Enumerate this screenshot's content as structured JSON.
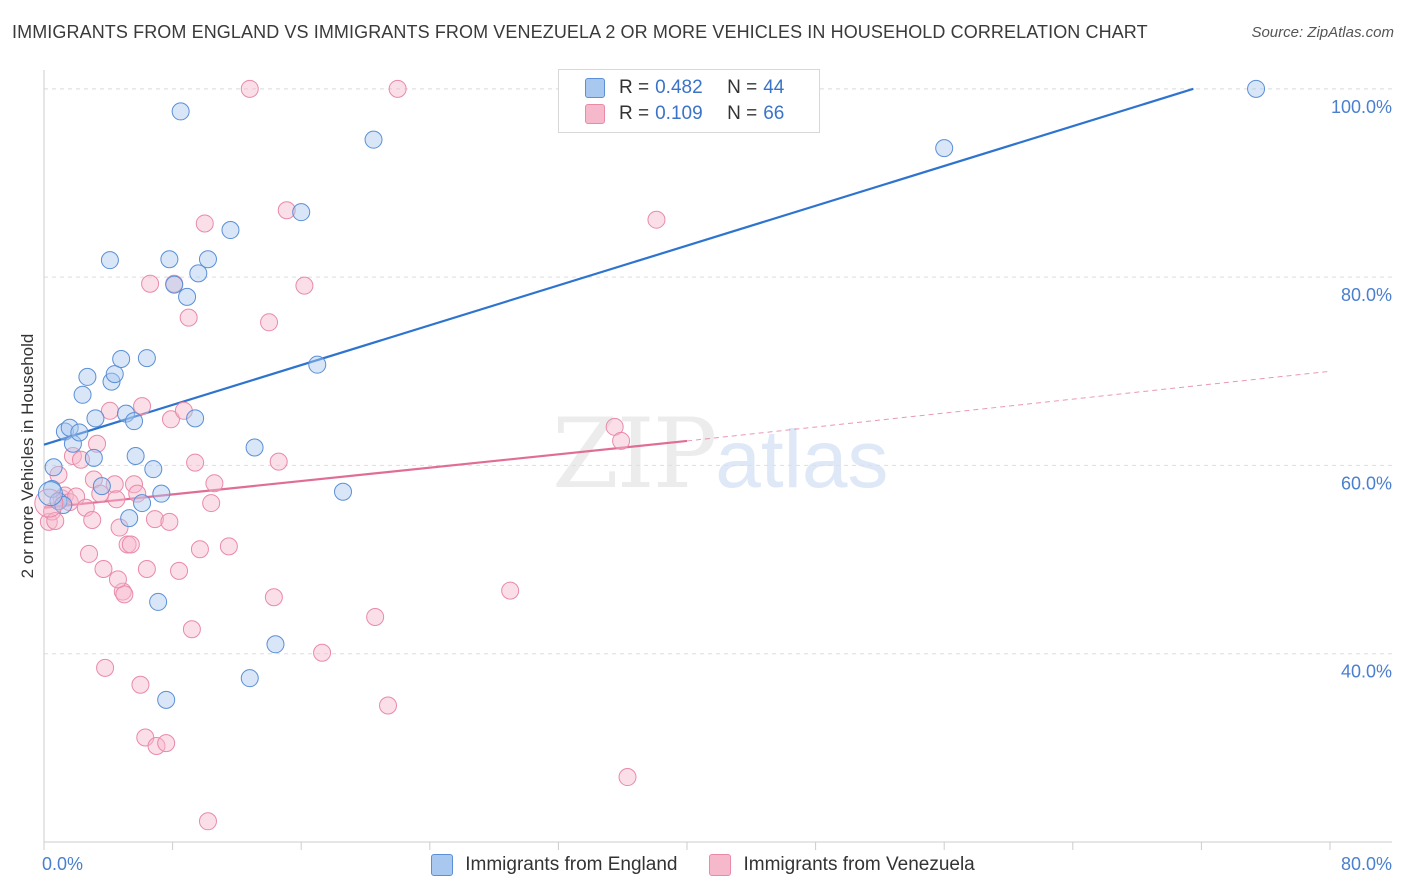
{
  "title": "IMMIGRANTS FROM ENGLAND VS IMMIGRANTS FROM VENEZUELA 2 OR MORE VEHICLES IN HOUSEHOLD CORRELATION CHART",
  "source": "Source: ZipAtlas.com",
  "watermark": {
    "zip": "ZIP",
    "atlas": "atlas"
  },
  "legend": {
    "england": {
      "r_label": "R = ",
      "r_value": "0.482",
      "n_label": "N = ",
      "n_value": "44"
    },
    "venezuela": {
      "r_label": "R = ",
      "r_value": "0.109",
      "n_label": "N = ",
      "n_value": "66"
    }
  },
  "colors": {
    "england_fill": "#a9c8f0",
    "england_stroke": "#5b8fd6",
    "england_line": "#2e74cf",
    "venezuela_fill": "#f6b8cb",
    "venezuela_stroke": "#e98aa8",
    "venezuela_line": "#e06d96",
    "grid": "#dedede",
    "tick_label": "#4a7fd0"
  },
  "chart_data": {
    "type": "scatter",
    "title": "IMMIGRANTS FROM ENGLAND VS IMMIGRANTS FROM VENEZUELA 2 OR MORE VEHICLES IN HOUSEHOLD CORRELATION CHART",
    "xlabel": "",
    "ylabel": "2 or more Vehicles in Household",
    "xlim": [
      0,
      80
    ],
    "ylim": [
      20,
      102
    ],
    "x_tick_labels": [
      {
        "value": 0,
        "label": "0.0%"
      },
      {
        "value": 80,
        "label": "80.0%"
      }
    ],
    "y_tick_labels": [
      {
        "value": 100,
        "label": "100.0%"
      },
      {
        "value": 80,
        "label": "80.0%"
      },
      {
        "value": 60,
        "label": "60.0%"
      },
      {
        "value": 40,
        "label": "40.0%"
      }
    ],
    "series": [
      {
        "name": "Immigrants from England",
        "r": 0.482,
        "n": 44,
        "trend": {
          "x0": 0,
          "y0": 62.2,
          "x1": 71.5,
          "y1": 100,
          "dashed_to": null
        },
        "points": [
          [
            0.5,
            57.5
          ],
          [
            0.6,
            59.8
          ],
          [
            0.9,
            56.2
          ],
          [
            1.2,
            55.8
          ],
          [
            1.3,
            63.6
          ],
          [
            1.6,
            64.0
          ],
          [
            1.8,
            62.3
          ],
          [
            2.2,
            63.5
          ],
          [
            2.4,
            67.5
          ],
          [
            2.7,
            69.4
          ],
          [
            3.1,
            60.8
          ],
          [
            3.2,
            65.0
          ],
          [
            3.6,
            57.8
          ],
          [
            4.1,
            81.8
          ],
          [
            4.2,
            68.9
          ],
          [
            4.4,
            69.7
          ],
          [
            4.8,
            71.3
          ],
          [
            5.1,
            65.5
          ],
          [
            5.6,
            64.7
          ],
          [
            5.7,
            61.0
          ],
          [
            6.1,
            56.0
          ],
          [
            6.4,
            71.4
          ],
          [
            6.8,
            59.6
          ],
          [
            7.1,
            45.5
          ],
          [
            7.3,
            57.0
          ],
          [
            7.6,
            35.1
          ],
          [
            7.8,
            81.9
          ],
          [
            8.1,
            79.2
          ],
          [
            8.5,
            97.6
          ],
          [
            8.9,
            77.9
          ],
          [
            9.4,
            65.0
          ],
          [
            9.6,
            80.4
          ],
          [
            10.2,
            81.9
          ],
          [
            11.6,
            85.0
          ],
          [
            12.8,
            37.4
          ],
          [
            13.1,
            61.9
          ],
          [
            14.4,
            41.0
          ],
          [
            16.0,
            86.9
          ],
          [
            17.0,
            70.7
          ],
          [
            18.6,
            57.2
          ],
          [
            20.5,
            94.6
          ],
          [
            56.0,
            93.7
          ],
          [
            75.4,
            100.0
          ],
          [
            5.3,
            54.4
          ]
        ]
      },
      {
        "name": "Immigrants from Venezuela",
        "r": 0.109,
        "n": 66,
        "trend": {
          "x0": 0,
          "y0": 55.5,
          "x1": 40,
          "y1": 62.6,
          "dashed_to": {
            "x": 80,
            "y": 70.0
          }
        },
        "points": [
          [
            0.3,
            54.0
          ],
          [
            0.5,
            55.1
          ],
          [
            0.7,
            54.1
          ],
          [
            0.9,
            59.0
          ],
          [
            1.1,
            56.5
          ],
          [
            1.3,
            56.8
          ],
          [
            1.6,
            56.1
          ],
          [
            1.8,
            61.0
          ],
          [
            2.0,
            56.7
          ],
          [
            2.3,
            60.6
          ],
          [
            2.6,
            55.5
          ],
          [
            2.8,
            50.6
          ],
          [
            3.1,
            58.5
          ],
          [
            3.3,
            62.3
          ],
          [
            3.5,
            57.0
          ],
          [
            3.7,
            49.0
          ],
          [
            3.8,
            38.5
          ],
          [
            4.1,
            65.8
          ],
          [
            4.4,
            58.0
          ],
          [
            4.5,
            56.4
          ],
          [
            4.7,
            53.4
          ],
          [
            4.9,
            46.6
          ],
          [
            5.0,
            46.3
          ],
          [
            5.2,
            51.6
          ],
          [
            5.4,
            51.6
          ],
          [
            5.6,
            58.0
          ],
          [
            5.8,
            57.0
          ],
          [
            6.0,
            36.7
          ],
          [
            6.1,
            66.3
          ],
          [
            6.3,
            31.1
          ],
          [
            6.4,
            49.0
          ],
          [
            6.6,
            79.3
          ],
          [
            6.9,
            54.3
          ],
          [
            7.0,
            30.2
          ],
          [
            7.6,
            30.5
          ],
          [
            7.9,
            64.9
          ],
          [
            8.1,
            79.3
          ],
          [
            8.4,
            48.8
          ],
          [
            8.7,
            65.8
          ],
          [
            9.0,
            75.7
          ],
          [
            9.2,
            42.6
          ],
          [
            9.4,
            60.3
          ],
          [
            9.7,
            51.1
          ],
          [
            10.0,
            85.7
          ],
          [
            10.2,
            22.2
          ],
          [
            10.4,
            56.0
          ],
          [
            10.6,
            58.1
          ],
          [
            11.5,
            51.4
          ],
          [
            14.0,
            75.2
          ],
          [
            14.3,
            46.0
          ],
          [
            14.6,
            60.4
          ],
          [
            15.1,
            87.1
          ],
          [
            16.2,
            79.1
          ],
          [
            17.3,
            40.1
          ],
          [
            20.6,
            43.9
          ],
          [
            21.4,
            34.5
          ],
          [
            12.8,
            100.0
          ],
          [
            22.0,
            100.0
          ],
          [
            29.0,
            46.7
          ],
          [
            35.5,
            64.1
          ],
          [
            35.9,
            62.6
          ],
          [
            36.3,
            26.9
          ],
          [
            38.1,
            86.1
          ],
          [
            3.0,
            54.2
          ],
          [
            4.6,
            47.9
          ],
          [
            7.8,
            54.0
          ]
        ]
      }
    ]
  },
  "bottom_legend": {
    "england_label": "Immigrants from England",
    "venezuela_label": "Immigrants from Venezuela"
  }
}
